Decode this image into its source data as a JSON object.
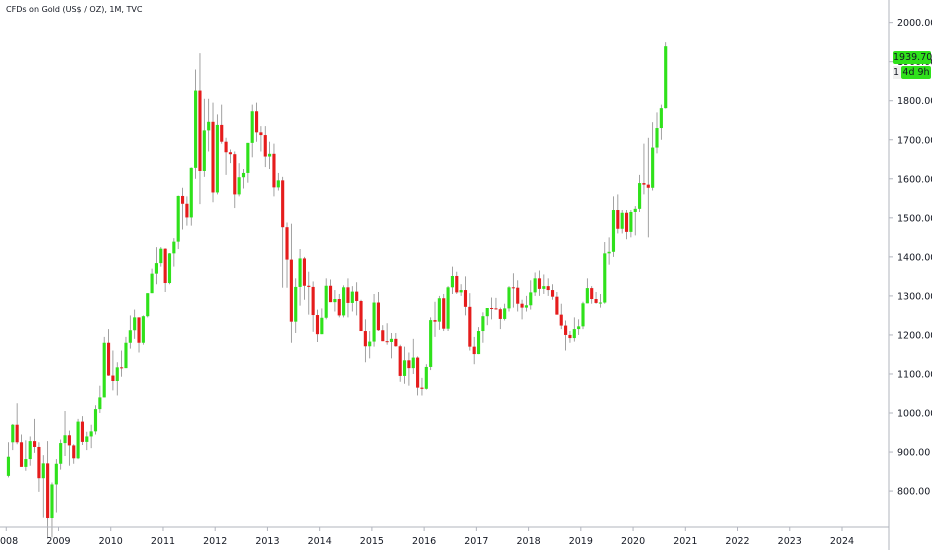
{
  "header": {
    "title": "CFDs on Gold (US$ / OZ), 1M, TVC"
  },
  "price_labels": {
    "last_price": "1939.70",
    "countdown": "4d 9h",
    "countdown_stub": "1"
  },
  "colors": {
    "up": "#2fe11b",
    "down": "#e51c1c",
    "wick": "#8a8a8a",
    "axis_line": "#b2b5be",
    "text": "#131722"
  },
  "chart_data": {
    "type": "candlestick",
    "title": "CFDs on Gold (US$ / OZ), 1M, TVC",
    "symbol": "TVC",
    "interval": "1M",
    "y_axis_position": "right",
    "ylim": [
      708,
      2058
    ],
    "y_ticks": [
      "800.00",
      "900.00",
      "1000.00",
      "1100.00",
      "1200.00",
      "1300.00",
      "1400.00",
      "1500.00",
      "1600.00",
      "1700.00",
      "1800.00",
      "1900.00",
      "2000.00"
    ],
    "x_ticks": [
      "008",
      "2009",
      "2010",
      "2011",
      "2012",
      "2013",
      "2014",
      "2015",
      "2016",
      "2017",
      "2018",
      "2019",
      "2020",
      "2021",
      "2022",
      "2023",
      "2024"
    ],
    "x_axis_start": 2007.88,
    "x_axis_end": 2024.9,
    "grid": false,
    "last_price": 1939.7,
    "start_date": "2008-01",
    "candles_ohlc": [
      [
        839,
        888,
        835,
        925
      ],
      [
        925,
        970,
        905,
        972
      ],
      [
        970,
        925,
        920,
        1025
      ],
      [
        925,
        862,
        862,
        945
      ],
      [
        862,
        882,
        852,
        930
      ],
      [
        882,
        928,
        865,
        940
      ],
      [
        928,
        913,
        898,
        985
      ],
      [
        913,
        833,
        798,
        925
      ],
      [
        833,
        871,
        732,
        892
      ],
      [
        871,
        731,
        681,
        928
      ],
      [
        731,
        817,
        681,
        822
      ],
      [
        817,
        870,
        745,
        882
      ],
      [
        870,
        923,
        855,
        932
      ],
      [
        923,
        943,
        890,
        1005
      ],
      [
        943,
        917,
        865,
        955
      ],
      [
        917,
        884,
        870,
        920
      ],
      [
        884,
        978,
        882,
        985
      ],
      [
        978,
        926,
        918,
        992
      ],
      [
        926,
        940,
        905,
        952
      ],
      [
        940,
        953,
        910,
        970
      ],
      [
        953,
        1010,
        945,
        1020
      ],
      [
        1010,
        1040,
        1000,
        1070
      ],
      [
        1040,
        1180,
        1040,
        1195
      ],
      [
        1180,
        1096,
        1095,
        1215
      ],
      [
        1096,
        1082,
        1058,
        1160
      ],
      [
        1082,
        1117,
        1045,
        1130
      ],
      [
        1117,
        1115,
        1093,
        1160
      ],
      [
        1115,
        1180,
        1115,
        1195
      ],
      [
        1180,
        1212,
        1165,
        1250
      ],
      [
        1212,
        1245,
        1190,
        1265
      ],
      [
        1245,
        1180,
        1155,
        1245
      ],
      [
        1180,
        1248,
        1175,
        1250
      ],
      [
        1248,
        1307,
        1245,
        1300
      ],
      [
        1307,
        1357,
        1315,
        1370
      ],
      [
        1357,
        1384,
        1330,
        1425
      ],
      [
        1384,
        1421,
        1375,
        1425
      ],
      [
        1421,
        1333,
        1310,
        1422
      ],
      [
        1333,
        1409,
        1330,
        1410
      ],
      [
        1409,
        1439,
        1375,
        1448
      ],
      [
        1439,
        1556,
        1420,
        1557
      ],
      [
        1556,
        1536,
        1470,
        1577
      ],
      [
        1536,
        1501,
        1480,
        1555
      ],
      [
        1501,
        1628,
        1480,
        1629
      ],
      [
        1628,
        1826,
        1600,
        1880
      ],
      [
        1826,
        1620,
        1535,
        1922
      ],
      [
        1620,
        1724,
        1605,
        1805
      ],
      [
        1724,
        1746,
        1670,
        1805
      ],
      [
        1746,
        1565,
        1540,
        1795
      ],
      [
        1565,
        1738,
        1560,
        1765
      ],
      [
        1738,
        1695,
        1690,
        1790
      ],
      [
        1695,
        1668,
        1610,
        1705
      ],
      [
        1668,
        1663,
        1640,
        1675
      ],
      [
        1663,
        1560,
        1525,
        1670
      ],
      [
        1560,
        1604,
        1555,
        1640
      ],
      [
        1604,
        1615,
        1575,
        1625
      ],
      [
        1615,
        1692,
        1590,
        1620
      ],
      [
        1692,
        1773,
        1655,
        1790
      ],
      [
        1773,
        1719,
        1695,
        1795
      ],
      [
        1719,
        1712,
        1670,
        1735
      ],
      [
        1712,
        1657,
        1630,
        1735
      ],
      [
        1657,
        1664,
        1625,
        1695
      ],
      [
        1664,
        1578,
        1555,
        1690
      ],
      [
        1578,
        1596,
        1570,
        1615
      ],
      [
        1596,
        1476,
        1321,
        1605
      ],
      [
        1476,
        1393,
        1321,
        1488
      ],
      [
        1393,
        1234,
        1180,
        1485
      ],
      [
        1234,
        1323,
        1205,
        1345
      ],
      [
        1323,
        1396,
        1275,
        1420
      ],
      [
        1396,
        1326,
        1290,
        1400
      ],
      [
        1326,
        1323,
        1252,
        1362
      ],
      [
        1323,
        1251,
        1208,
        1337
      ],
      [
        1251,
        1202,
        1182,
        1265
      ],
      [
        1202,
        1244,
        1203,
        1268
      ],
      [
        1244,
        1326,
        1240,
        1345
      ],
      [
        1326,
        1284,
        1320,
        1342
      ],
      [
        1284,
        1292,
        1260,
        1315
      ],
      [
        1292,
        1250,
        1245,
        1305
      ],
      [
        1250,
        1322,
        1245,
        1327
      ],
      [
        1322,
        1282,
        1245,
        1345
      ],
      [
        1282,
        1311,
        1260,
        1325
      ],
      [
        1311,
        1287,
        1250,
        1335
      ],
      [
        1287,
        1210,
        1230,
        1290
      ],
      [
        1210,
        1171,
        1130,
        1240
      ],
      [
        1171,
        1183,
        1140,
        1210
      ],
      [
        1183,
        1283,
        1170,
        1305
      ],
      [
        1283,
        1212,
        1210,
        1310
      ],
      [
        1212,
        1184,
        1190,
        1225
      ],
      [
        1184,
        1182,
        1175,
        1230
      ],
      [
        1182,
        1190,
        1140,
        1205
      ],
      [
        1190,
        1171,
        1170,
        1205
      ],
      [
        1171,
        1095,
        1080,
        1175
      ],
      [
        1095,
        1135,
        1075,
        1170
      ],
      [
        1135,
        1115,
        1070,
        1155
      ],
      [
        1115,
        1142,
        1100,
        1190
      ],
      [
        1142,
        1065,
        1045,
        1145
      ],
      [
        1065,
        1062,
        1045,
        1090
      ],
      [
        1062,
        1118,
        1060,
        1125
      ],
      [
        1118,
        1238,
        1110,
        1245
      ],
      [
        1238,
        1234,
        1195,
        1285
      ],
      [
        1234,
        1294,
        1213,
        1300
      ],
      [
        1294,
        1216,
        1210,
        1305
      ],
      [
        1216,
        1322,
        1210,
        1325
      ],
      [
        1322,
        1351,
        1305,
        1375
      ],
      [
        1351,
        1309,
        1305,
        1362
      ],
      [
        1309,
        1315,
        1300,
        1330
      ],
      [
        1315,
        1272,
        1250,
        1350
      ],
      [
        1272,
        1170,
        1160,
        1307
      ],
      [
        1170,
        1151,
        1125,
        1195
      ],
      [
        1151,
        1210,
        1160,
        1220
      ],
      [
        1210,
        1248,
        1180,
        1258
      ],
      [
        1248,
        1269,
        1225,
        1263
      ],
      [
        1269,
        1268,
        1240,
        1296
      ],
      [
        1268,
        1266,
        1265,
        1295
      ],
      [
        1266,
        1241,
        1215,
        1270
      ],
      [
        1241,
        1268,
        1237,
        1280
      ],
      [
        1268,
        1322,
        1260,
        1325
      ],
      [
        1322,
        1321,
        1270,
        1358
      ],
      [
        1321,
        1280,
        1260,
        1340
      ],
      [
        1280,
        1270,
        1240,
        1290
      ],
      [
        1270,
        1276,
        1260,
        1300
      ],
      [
        1276,
        1309,
        1265,
        1340
      ],
      [
        1309,
        1345,
        1300,
        1360
      ],
      [
        1345,
        1318,
        1300,
        1365
      ],
      [
        1318,
        1325,
        1305,
        1355
      ],
      [
        1325,
        1315,
        1300,
        1345
      ],
      [
        1315,
        1298,
        1290,
        1330
      ],
      [
        1298,
        1252,
        1255,
        1310
      ],
      [
        1252,
        1224,
        1215,
        1280
      ],
      [
        1224,
        1200,
        1160,
        1237
      ],
      [
        1200,
        1192,
        1180,
        1210
      ],
      [
        1192,
        1215,
        1183,
        1245
      ],
      [
        1215,
        1222,
        1200,
        1240
      ],
      [
        1222,
        1281,
        1215,
        1285
      ],
      [
        1281,
        1320,
        1290,
        1345
      ],
      [
        1320,
        1292,
        1280,
        1325
      ],
      [
        1292,
        1282,
        1280,
        1310
      ],
      [
        1282,
        1283,
        1270,
        1305
      ],
      [
        1283,
        1409,
        1280,
        1438
      ],
      [
        1409,
        1413,
        1380,
        1450
      ],
      [
        1413,
        1520,
        1400,
        1555
      ],
      [
        1520,
        1472,
        1460,
        1560
      ],
      [
        1472,
        1513,
        1460,
        1520
      ],
      [
        1513,
        1464,
        1445,
        1520
      ],
      [
        1464,
        1515,
        1450,
        1520
      ],
      [
        1515,
        1523,
        1455,
        1530
      ],
      [
        1523,
        1589,
        1515,
        1610
      ],
      [
        1589,
        1585,
        1560,
        1690
      ],
      [
        1585,
        1577,
        1450,
        1705
      ],
      [
        1577,
        1680,
        1570,
        1745
      ],
      [
        1680,
        1730,
        1665,
        1770
      ],
      [
        1730,
        1781,
        1700,
        1790
      ],
      [
        1781,
        1939.7,
        1780,
        1950
      ]
    ]
  }
}
